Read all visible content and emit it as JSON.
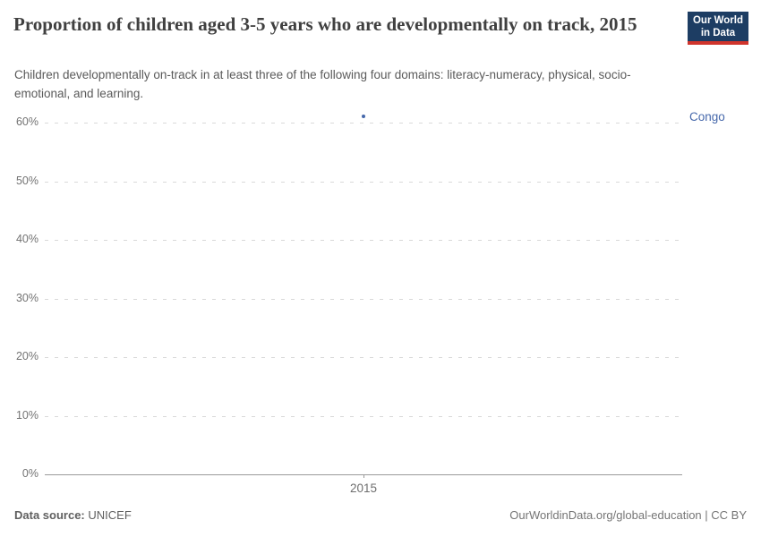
{
  "header": {
    "title": "Proportion of children aged 3-5 years who are developmentally on track, 2015",
    "subtitle": "Children developmentally on-track in at least three of the following four domains: literacy-numeracy, physical, socio-emotional, and learning.",
    "logo": {
      "line1": "Our World",
      "line2": "in Data",
      "bg_color": "#1d3d63",
      "accent_color": "#d0342c"
    }
  },
  "chart_data": {
    "type": "scatter",
    "title": "Proportion of children aged 3-5 years who are developmentally on track, 2015",
    "x": [
      "2015"
    ],
    "series": [
      {
        "name": "Congo",
        "values": [
          61
        ],
        "color": "#4668ab"
      }
    ],
    "xlabel": "",
    "ylabel": "",
    "ylim": [
      0,
      60
    ],
    "yticks": [
      0,
      10,
      20,
      30,
      40,
      50,
      60
    ],
    "ytick_suffix": "%",
    "grid": "horizontal-dashed",
    "legend": "entity-label-right"
  },
  "footer": {
    "data_source_label": "Data source:",
    "data_source_value": "UNICEF",
    "attribution": "OurWorldinData.org/global-education | CC BY"
  }
}
